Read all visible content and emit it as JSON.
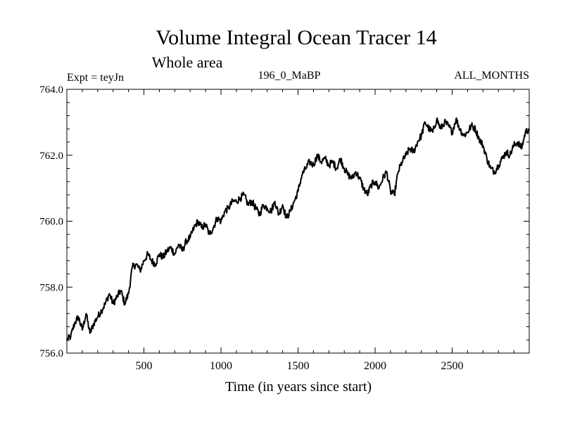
{
  "chart_data": {
    "type": "line",
    "title": "Volume Integral Ocean Tracer 14",
    "subtitle": "Whole area",
    "left_label": "Expt = teyJn",
    "center_label": "196_0_MaBP",
    "right_label": "ALL_MONTHS",
    "xlabel": "Time (in years since start)",
    "ylabel": "",
    "xlim": [
      0,
      3000
    ],
    "ylim": [
      756.0,
      764.0
    ],
    "x_ticks": [
      500,
      1000,
      1500,
      2000,
      2500
    ],
    "x_tick_labels": [
      "500",
      "1000",
      "1500",
      "2000",
      "2500"
    ],
    "y_ticks": [
      756.0,
      758.0,
      760.0,
      762.0,
      764.0
    ],
    "y_tick_labels": [
      "756.0",
      "758.0",
      "760.0",
      "762.0",
      "764.0"
    ],
    "grid": false,
    "series": [
      {
        "name": "Volume Integral Ocean Tracer 14",
        "x": [
          0,
          25,
          50,
          75,
          100,
          125,
          150,
          175,
          200,
          225,
          250,
          275,
          300,
          325,
          350,
          375,
          400,
          425,
          450,
          475,
          500,
          525,
          550,
          575,
          600,
          625,
          650,
          675,
          700,
          725,
          750,
          775,
          800,
          825,
          850,
          875,
          900,
          925,
          950,
          975,
          1000,
          1025,
          1050,
          1075,
          1100,
          1125,
          1150,
          1175,
          1200,
          1225,
          1250,
          1275,
          1300,
          1325,
          1350,
          1375,
          1400,
          1425,
          1450,
          1475,
          1500,
          1525,
          1550,
          1575,
          1600,
          1625,
          1650,
          1675,
          1700,
          1725,
          1750,
          1775,
          1800,
          1825,
          1850,
          1875,
          1900,
          1925,
          1950,
          1975,
          2000,
          2025,
          2050,
          2075,
          2100,
          2125,
          2150,
          2175,
          2200,
          2225,
          2250,
          2275,
          2300,
          2325,
          2350,
          2375,
          2400,
          2425,
          2450,
          2475,
          2500,
          2525,
          2550,
          2575,
          2600,
          2625,
          2650,
          2675,
          2700,
          2725,
          2750,
          2775,
          2800,
          2825,
          2850,
          2875,
          2900,
          2925,
          2950,
          2975,
          3000
        ],
        "values": [
          756.4,
          756.5,
          756.9,
          757.1,
          756.7,
          757.2,
          756.6,
          756.9,
          757.1,
          757.3,
          757.5,
          757.8,
          757.5,
          757.7,
          757.9,
          757.5,
          757.8,
          758.6,
          758.7,
          758.5,
          758.8,
          759.0,
          758.8,
          758.7,
          759.0,
          758.9,
          759.1,
          759.2,
          759.0,
          759.3,
          759.1,
          759.4,
          759.5,
          759.8,
          760.0,
          759.8,
          759.9,
          759.6,
          759.8,
          760.1,
          760.0,
          760.3,
          760.4,
          760.6,
          760.6,
          760.7,
          760.8,
          760.5,
          760.6,
          760.4,
          760.2,
          760.5,
          760.4,
          760.3,
          760.6,
          760.2,
          760.5,
          760.1,
          760.3,
          760.6,
          760.9,
          761.4,
          761.6,
          761.8,
          761.7,
          762.0,
          761.8,
          761.9,
          761.7,
          761.8,
          761.6,
          761.9,
          761.6,
          761.4,
          761.3,
          761.5,
          761.3,
          761.0,
          760.8,
          761.1,
          761.2,
          761.0,
          761.3,
          761.5,
          760.9,
          760.8,
          761.5,
          761.8,
          762.0,
          762.2,
          762.1,
          762.4,
          762.6,
          763.0,
          762.8,
          762.7,
          763.1,
          762.8,
          763.0,
          762.9,
          762.7,
          763.1,
          762.8,
          762.6,
          762.7,
          762.9,
          762.8,
          762.5,
          762.3,
          761.9,
          761.6,
          761.5,
          761.7,
          761.9,
          762.1,
          762.0,
          762.3,
          762.4,
          762.2,
          762.7,
          762.8
        ]
      }
    ]
  }
}
